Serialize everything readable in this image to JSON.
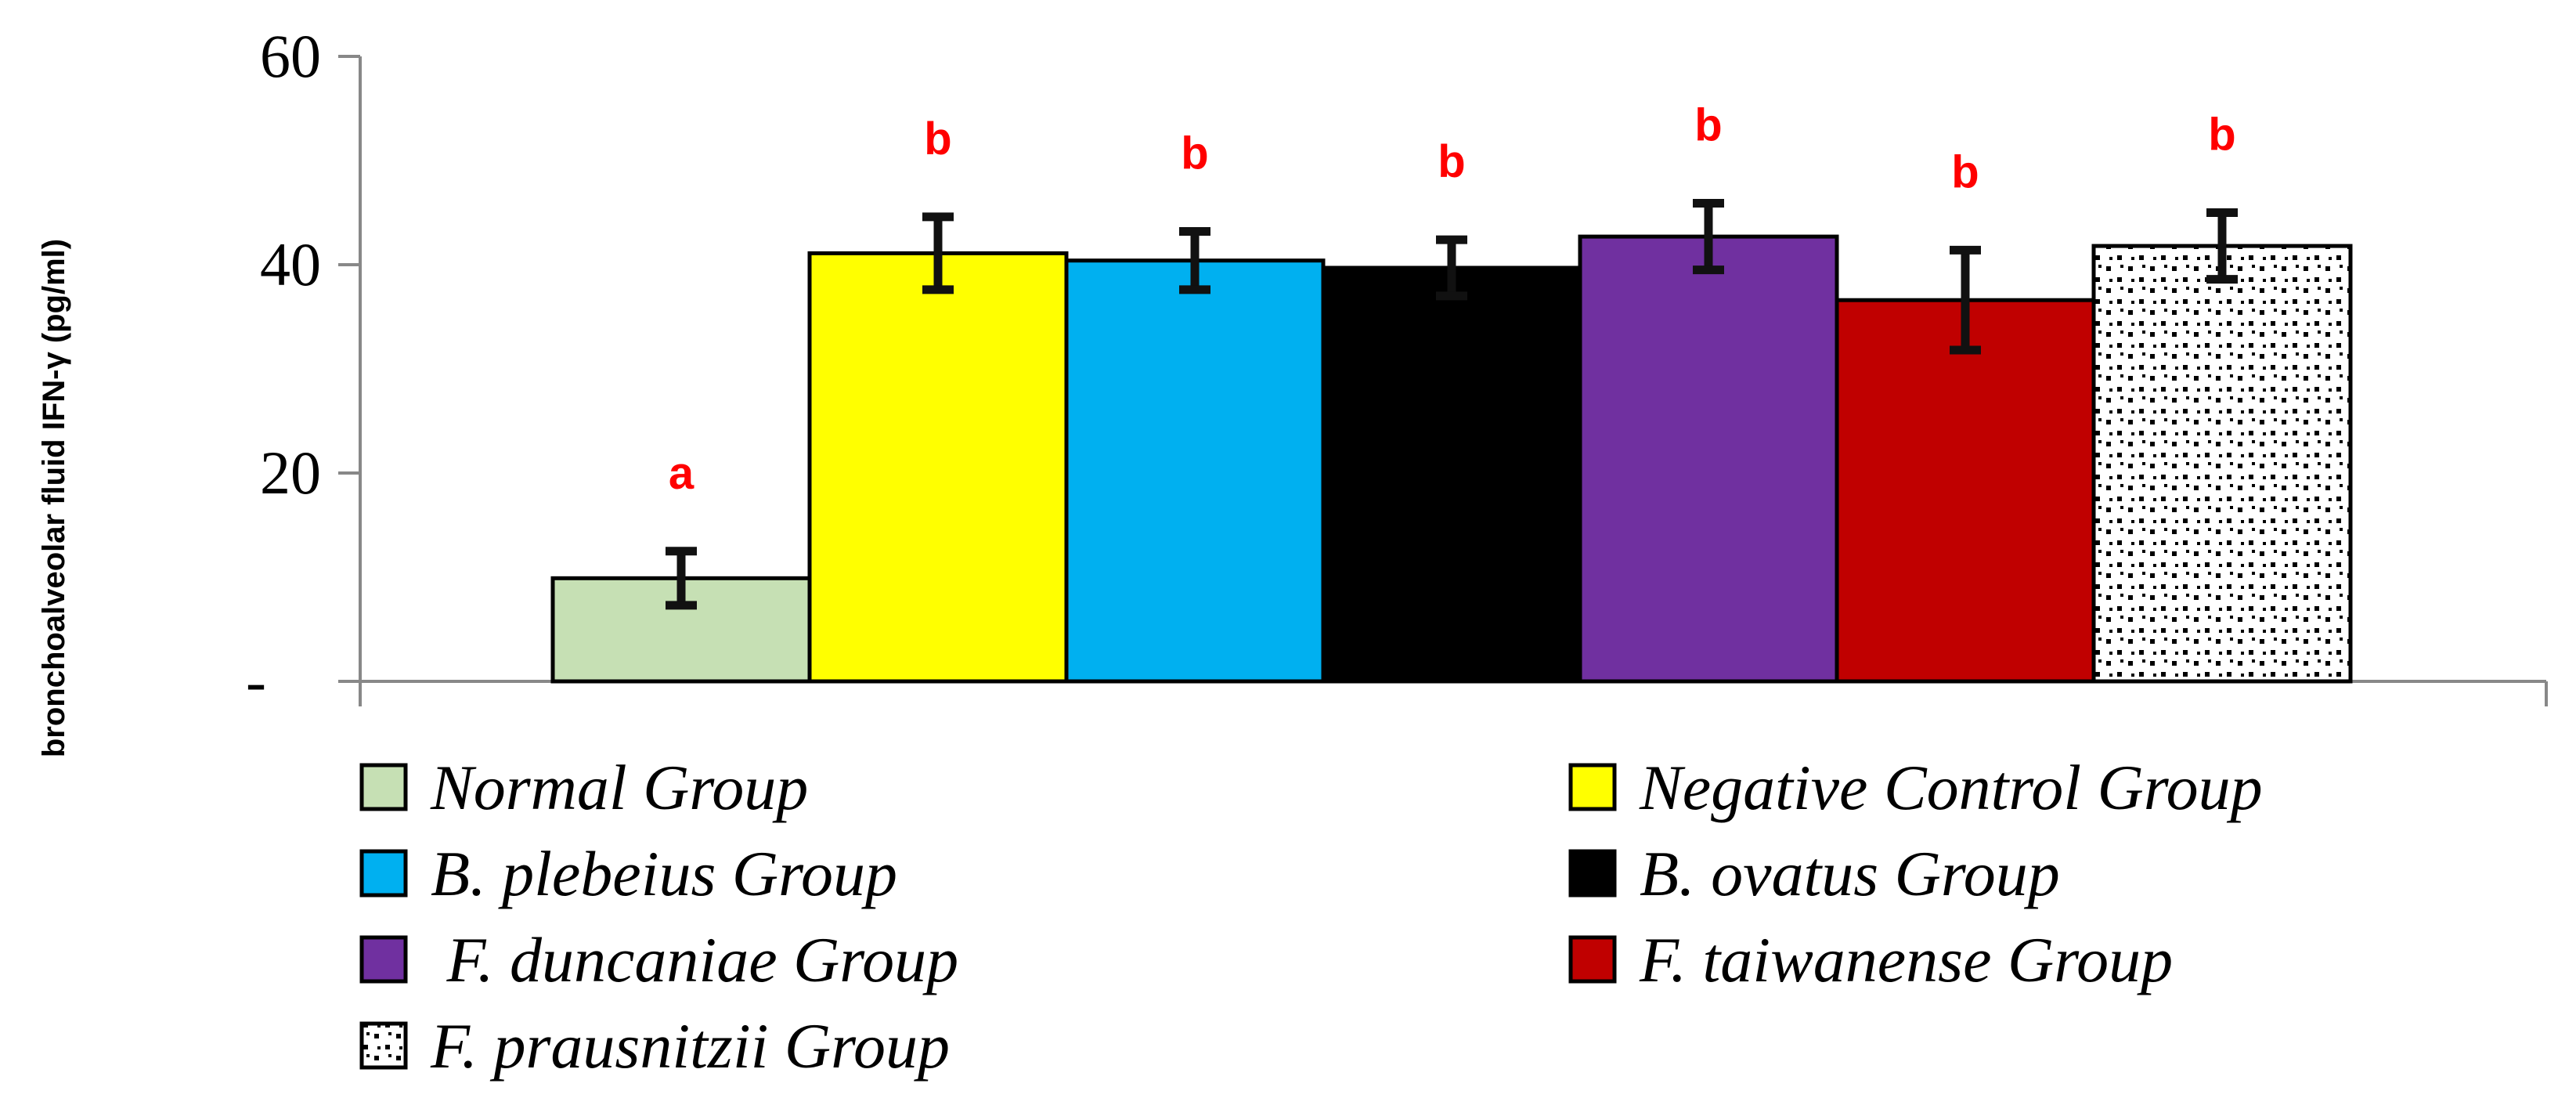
{
  "chart_data": {
    "type": "bar",
    "title": "",
    "xlabel": "",
    "ylabel": "bronchoalveolar fluid IFN-γ (pg/ml)",
    "ylim": [
      0,
      60
    ],
    "yticks": [
      {
        "value": 0,
        "label": "-"
      },
      {
        "value": 20,
        "label": "20"
      },
      {
        "value": 40,
        "label": "40"
      },
      {
        "value": 60,
        "label": "60"
      }
    ],
    "grid": false,
    "legend_position": "bottom",
    "series": [
      {
        "name": "Normal Group",
        "value": 9.9,
        "error": 2.6,
        "sig": "a",
        "color": "#c6e0b4",
        "pattern": "none"
      },
      {
        "name": "Negative Control Group",
        "value": 41.1,
        "error": 3.5,
        "sig": "b",
        "color": "#ffff00",
        "pattern": "none"
      },
      {
        "name": "B. plebeius Group",
        "value": 40.4,
        "error": 2.8,
        "sig": "b",
        "color": "#00b0f0",
        "pattern": "none"
      },
      {
        "name": "B. ovatus Group",
        "value": 39.7,
        "error": 2.7,
        "sig": "b",
        "color": "#000000",
        "pattern": "none"
      },
      {
        "name": " F. duncaniae Group",
        "value": 42.7,
        "error": 3.2,
        "sig": "b",
        "color": "#7030a0",
        "pattern": "none"
      },
      {
        "name": "F. taiwanense Group",
        "value": 36.6,
        "error": 4.8,
        "sig": "b",
        "color": "#c00000",
        "pattern": "none"
      },
      {
        "name": "F. prausnitzii Group",
        "value": 41.8,
        "error": 3.2,
        "sig": "b",
        "color": "#ffffff",
        "pattern": "dots"
      }
    ]
  }
}
